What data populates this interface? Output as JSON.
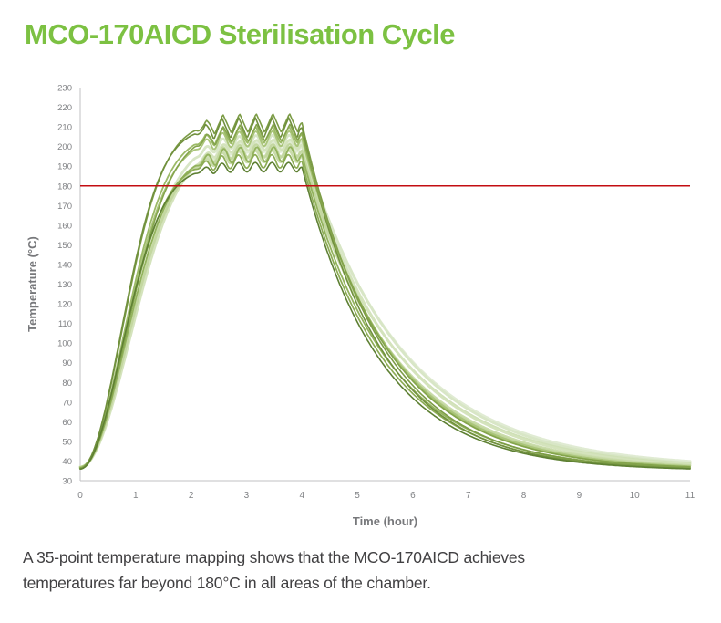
{
  "header": {
    "title": "MCO-170AICD Sterilisation Cycle",
    "accent_color": "#7cc142"
  },
  "caption": {
    "text": "A 35-point temperature mapping shows that the MCO-170AICD achieves temperatures far beyond 180°C in all areas of the chamber."
  },
  "chart_data": {
    "type": "line",
    "title": "MCO-170AICD Sterilisation Cycle",
    "xlabel": "Time (hour)",
    "ylabel": "Temperature (°C)",
    "xlim": [
      0,
      11
    ],
    "ylim": [
      30,
      230
    ],
    "xticks": [
      0,
      1,
      2,
      3,
      4,
      5,
      6,
      7,
      8,
      9,
      10,
      11
    ],
    "yticks": [
      30,
      40,
      50,
      60,
      70,
      80,
      90,
      100,
      110,
      120,
      130,
      140,
      150,
      160,
      170,
      180,
      190,
      200,
      210,
      220,
      230
    ],
    "grid": false,
    "legend": null,
    "axis_color": "#c0c1c3",
    "tick_color": "#808285",
    "label_color": "#77787b",
    "threshold": {
      "value": 180,
      "color": "#c30d12"
    },
    "model": {
      "description": "35-probe mapping curves: heat-up from ~37C starting at t=0, S-rise T=start+(plateau-start)*(1-exp(-(t/k)^2)), oscillating plateau (sine/triangle wave, period h, centered at osc_center) until hold_end, then exponential cool-down with time constant tau to end temp at t=11.",
      "hold_end": 4.0,
      "osc_center": 2.2,
      "osc_ramp_start": 2.05,
      "osc_ramp_len": 0.35
    },
    "series": [
      {
        "color": "#e0ebd3",
        "width": 3.0,
        "start": 37,
        "plateau": 200,
        "amp": 2.6,
        "period": 0.3,
        "wave": "sine",
        "phase": 0.4,
        "k": 1.24,
        "tau": 1.8,
        "end": 36.5
      },
      {
        "color": "#d8e6c6",
        "width": 2.8,
        "start": 37,
        "plateau": 203,
        "amp": 2.8,
        "period": 0.3,
        "wave": "sine",
        "phase": 0.1,
        "k": 1.21,
        "tau": 1.76,
        "end": 36.0
      },
      {
        "color": "#cfe0b6",
        "width": 2.8,
        "start": 36.5,
        "plateau": 197,
        "amp": 2.8,
        "period": 0.3,
        "wave": "sine",
        "phase": 0.55,
        "k": 1.18,
        "tau": 1.72,
        "end": 36.0
      },
      {
        "color": "#d4e3bc",
        "width": 2.6,
        "start": 37,
        "plateau": 201,
        "amp": 2.5,
        "period": 0.3,
        "wave": "sine",
        "phase": -0.2,
        "k": 1.26,
        "tau": 1.68,
        "end": 35.8
      },
      {
        "color": "#cadcab",
        "width": 2.6,
        "start": 36.5,
        "plateau": 195,
        "amp": 2.9,
        "period": 0.3,
        "wave": "sine",
        "phase": 0.25,
        "k": 1.15,
        "tau": 1.64,
        "end": 35.6
      },
      {
        "color": "#c3d7a0",
        "width": 2.4,
        "start": 37,
        "plateau": 198,
        "amp": 3.2,
        "period": 0.3,
        "wave": "sine",
        "phase": 0.0,
        "k": 1.2,
        "tau": 1.6,
        "end": 35.5
      },
      {
        "color": "#aac57a",
        "width": 1.9,
        "start": 37,
        "plateau": 204,
        "amp": 3.8,
        "period": 0.3,
        "wave": "sine",
        "phase": 0.15,
        "k": 1.12,
        "tau": 1.55,
        "end": 35.5
      },
      {
        "color": "#9cba67",
        "width": 1.8,
        "start": 36.5,
        "plateau": 206,
        "amp": 4.4,
        "period": 0.3,
        "wave": "tri",
        "phase": 0.2,
        "k": 1.1,
        "tau": 1.52,
        "end": 35.2
      },
      {
        "color": "#93b35d",
        "width": 1.8,
        "start": 36.5,
        "plateau": 196,
        "amp": 3.8,
        "period": 0.3,
        "wave": "sine",
        "phase": -0.3,
        "k": 1.14,
        "tau": 1.47,
        "end": 35.2
      },
      {
        "color": "#8cac54",
        "width": 1.7,
        "start": 36,
        "plateau": 192.5,
        "amp": 3.4,
        "period": 0.3,
        "wave": "sine",
        "phase": 0.45,
        "k": 1.08,
        "tau": 1.44,
        "end": 35.0
      },
      {
        "color": "#7c9c46",
        "width": 1.6,
        "start": 36.5,
        "plateau": 212,
        "amp": 4.8,
        "period": 0.3,
        "wave": "tri",
        "phase": 0.0,
        "k": 1.06,
        "tau": 1.42,
        "end": 35.2
      },
      {
        "color": "#70903d",
        "width": 1.6,
        "start": 36,
        "plateau": 209.5,
        "amp": 5.2,
        "period": 0.3,
        "wave": "tri",
        "phase": 0.3,
        "k": 1.03,
        "tau": 1.38,
        "end": 35.0
      },
      {
        "color": "#84a44c",
        "width": 1.6,
        "start": 36.5,
        "plateau": 207,
        "amp": 4.4,
        "period": 0.3,
        "wave": "tri",
        "phase": -0.15,
        "k": 1.16,
        "tau": 1.5,
        "end": 35.4
      },
      {
        "color": "#5e8033",
        "width": 1.6,
        "start": 36,
        "plateau": 189.5,
        "amp": 2.4,
        "period": 0.3,
        "wave": "sine",
        "phase": 0.35,
        "k": 1.05,
        "tau": 1.4,
        "end": 35.0
      }
    ]
  }
}
